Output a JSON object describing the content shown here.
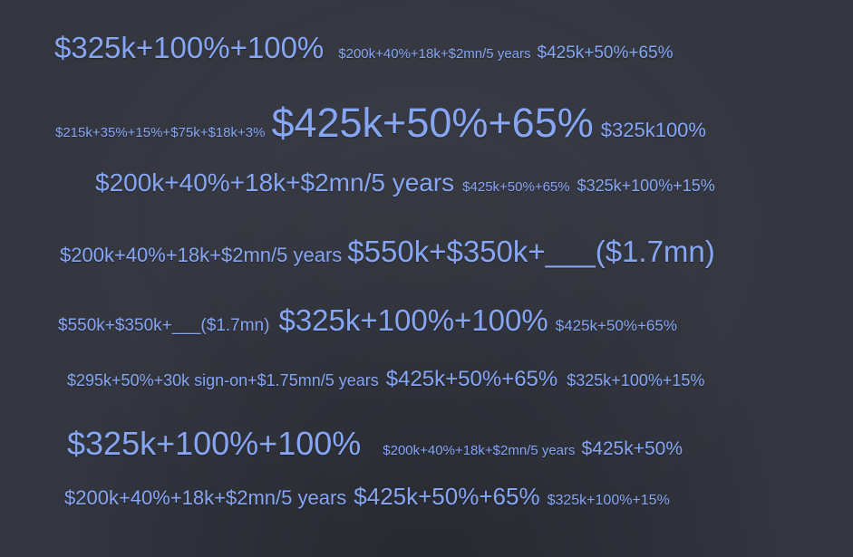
{
  "colors": {
    "background": "#33353f",
    "text": "#86a6f4"
  },
  "tag_cloud": {
    "rows": [
      [
        "$325k+100%+100%",
        "$200k+40%+18k+$2mn/5 years",
        "$425k+50%+65%"
      ],
      [
        "$215k+35%+15%+$75k+$18k+3%",
        "$425k+50%+65%",
        "$325k100%"
      ],
      [
        "$200k+40%+18k+$2mn/5 years",
        "$425k+50%+65%",
        "$325k+100%+15%"
      ],
      [
        "$200k+40%+18k+$2mn/5 years",
        "$550k+$350k+___($1.7mn)"
      ],
      [
        "$550k+$350k+___($1.7mn)",
        "$325k+100%+100%",
        "$425k+50%+65%"
      ],
      [
        "$295k+50%+30k sign-on+$1.75mn/5 years",
        "$425k+50%+65%",
        "$325k+100%+15%"
      ],
      [
        "$325k+100%+100%",
        "$200k+40%+18k+$2mn/5 years",
        "$425k+50%"
      ],
      [
        "$200k+40%+18k+$2mn/5 years",
        "$425k+50%+65%",
        "$325k+100%+15%"
      ]
    ]
  }
}
